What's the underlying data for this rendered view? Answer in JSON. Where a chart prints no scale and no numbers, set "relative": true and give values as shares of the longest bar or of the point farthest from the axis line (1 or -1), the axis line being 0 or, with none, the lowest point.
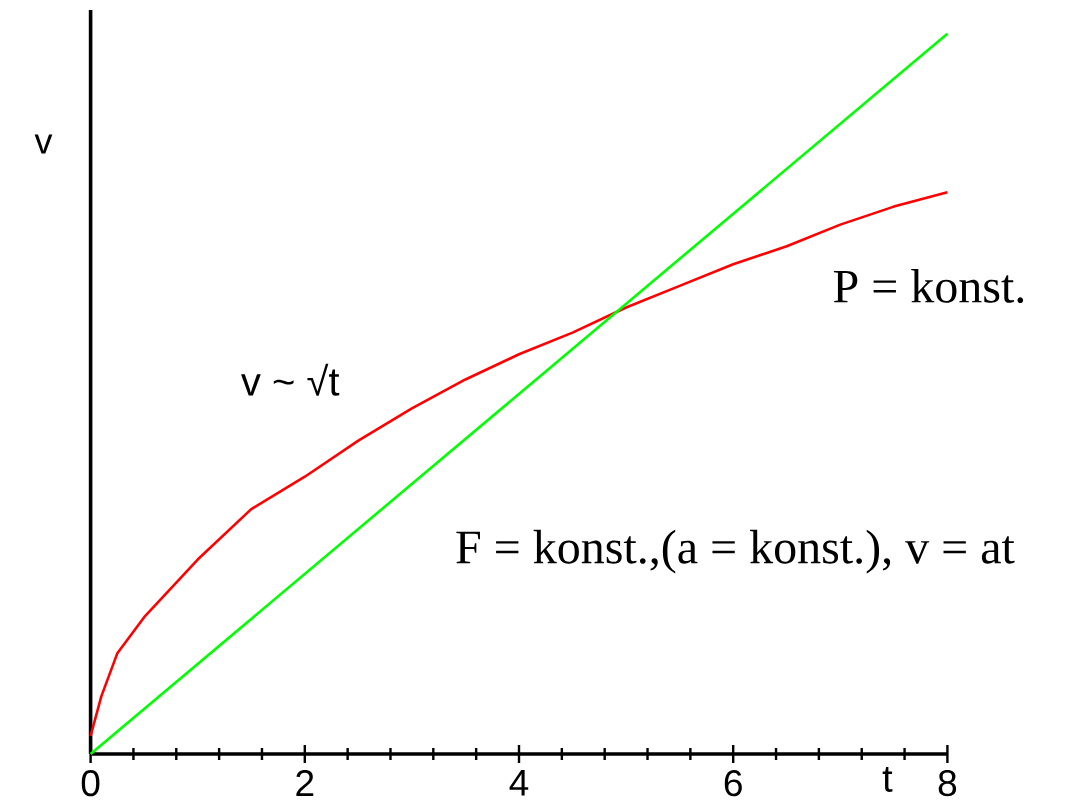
{
  "chart_data": {
    "type": "line",
    "relative": true,
    "xlabel": "t",
    "ylabel": "v",
    "xlim": [
      0,
      8
    ],
    "xticks": [
      0,
      {
        "value": 0.4,
        "label": null
      },
      {
        "value": 0.8,
        "label": null
      },
      {
        "value": 1.2,
        "label": null
      },
      {
        "value": 1.6,
        "label": null
      },
      2,
      {
        "value": 2.4,
        "label": null
      },
      {
        "value": 2.8,
        "label": null
      },
      {
        "value": 3.2,
        "label": null
      },
      {
        "value": 3.6,
        "label": null
      },
      4,
      {
        "value": 4.4,
        "label": null
      },
      {
        "value": 4.8,
        "label": null
      },
      {
        "value": 5.2,
        "label": null
      },
      {
        "value": 5.6,
        "label": null
      },
      6,
      {
        "value": 6.4,
        "label": null
      },
      {
        "value": 6.8,
        "label": null
      },
      {
        "value": 7.2,
        "label": null
      },
      {
        "value": 7.6,
        "label": null
      },
      8
    ],
    "series": [
      {
        "color": "#ff0000",
        "x": [
          0,
          0.1,
          0.25,
          0.5,
          1,
          1.5,
          2,
          2.5,
          3,
          3.5,
          4,
          4.5,
          5,
          5.5,
          6,
          6.5,
          7,
          7.5,
          8
        ],
        "values": [
          0.025,
          0.08,
          0.14,
          0.19,
          0.27,
          0.34,
          0.385,
          0.435,
          0.48,
          0.52,
          0.555,
          0.585,
          0.62,
          0.65,
          0.68,
          0.705,
          0.735,
          0.76,
          0.78
        ]
      },
      {
        "color": "#00ff00",
        "x": [
          0,
          4,
          8
        ],
        "values": [
          0,
          0.5,
          1
        ]
      }
    ],
    "annotations": [
      "v ~ √t",
      "P = konst.",
      "F = konst.,(a = konst.), v = at"
    ]
  }
}
